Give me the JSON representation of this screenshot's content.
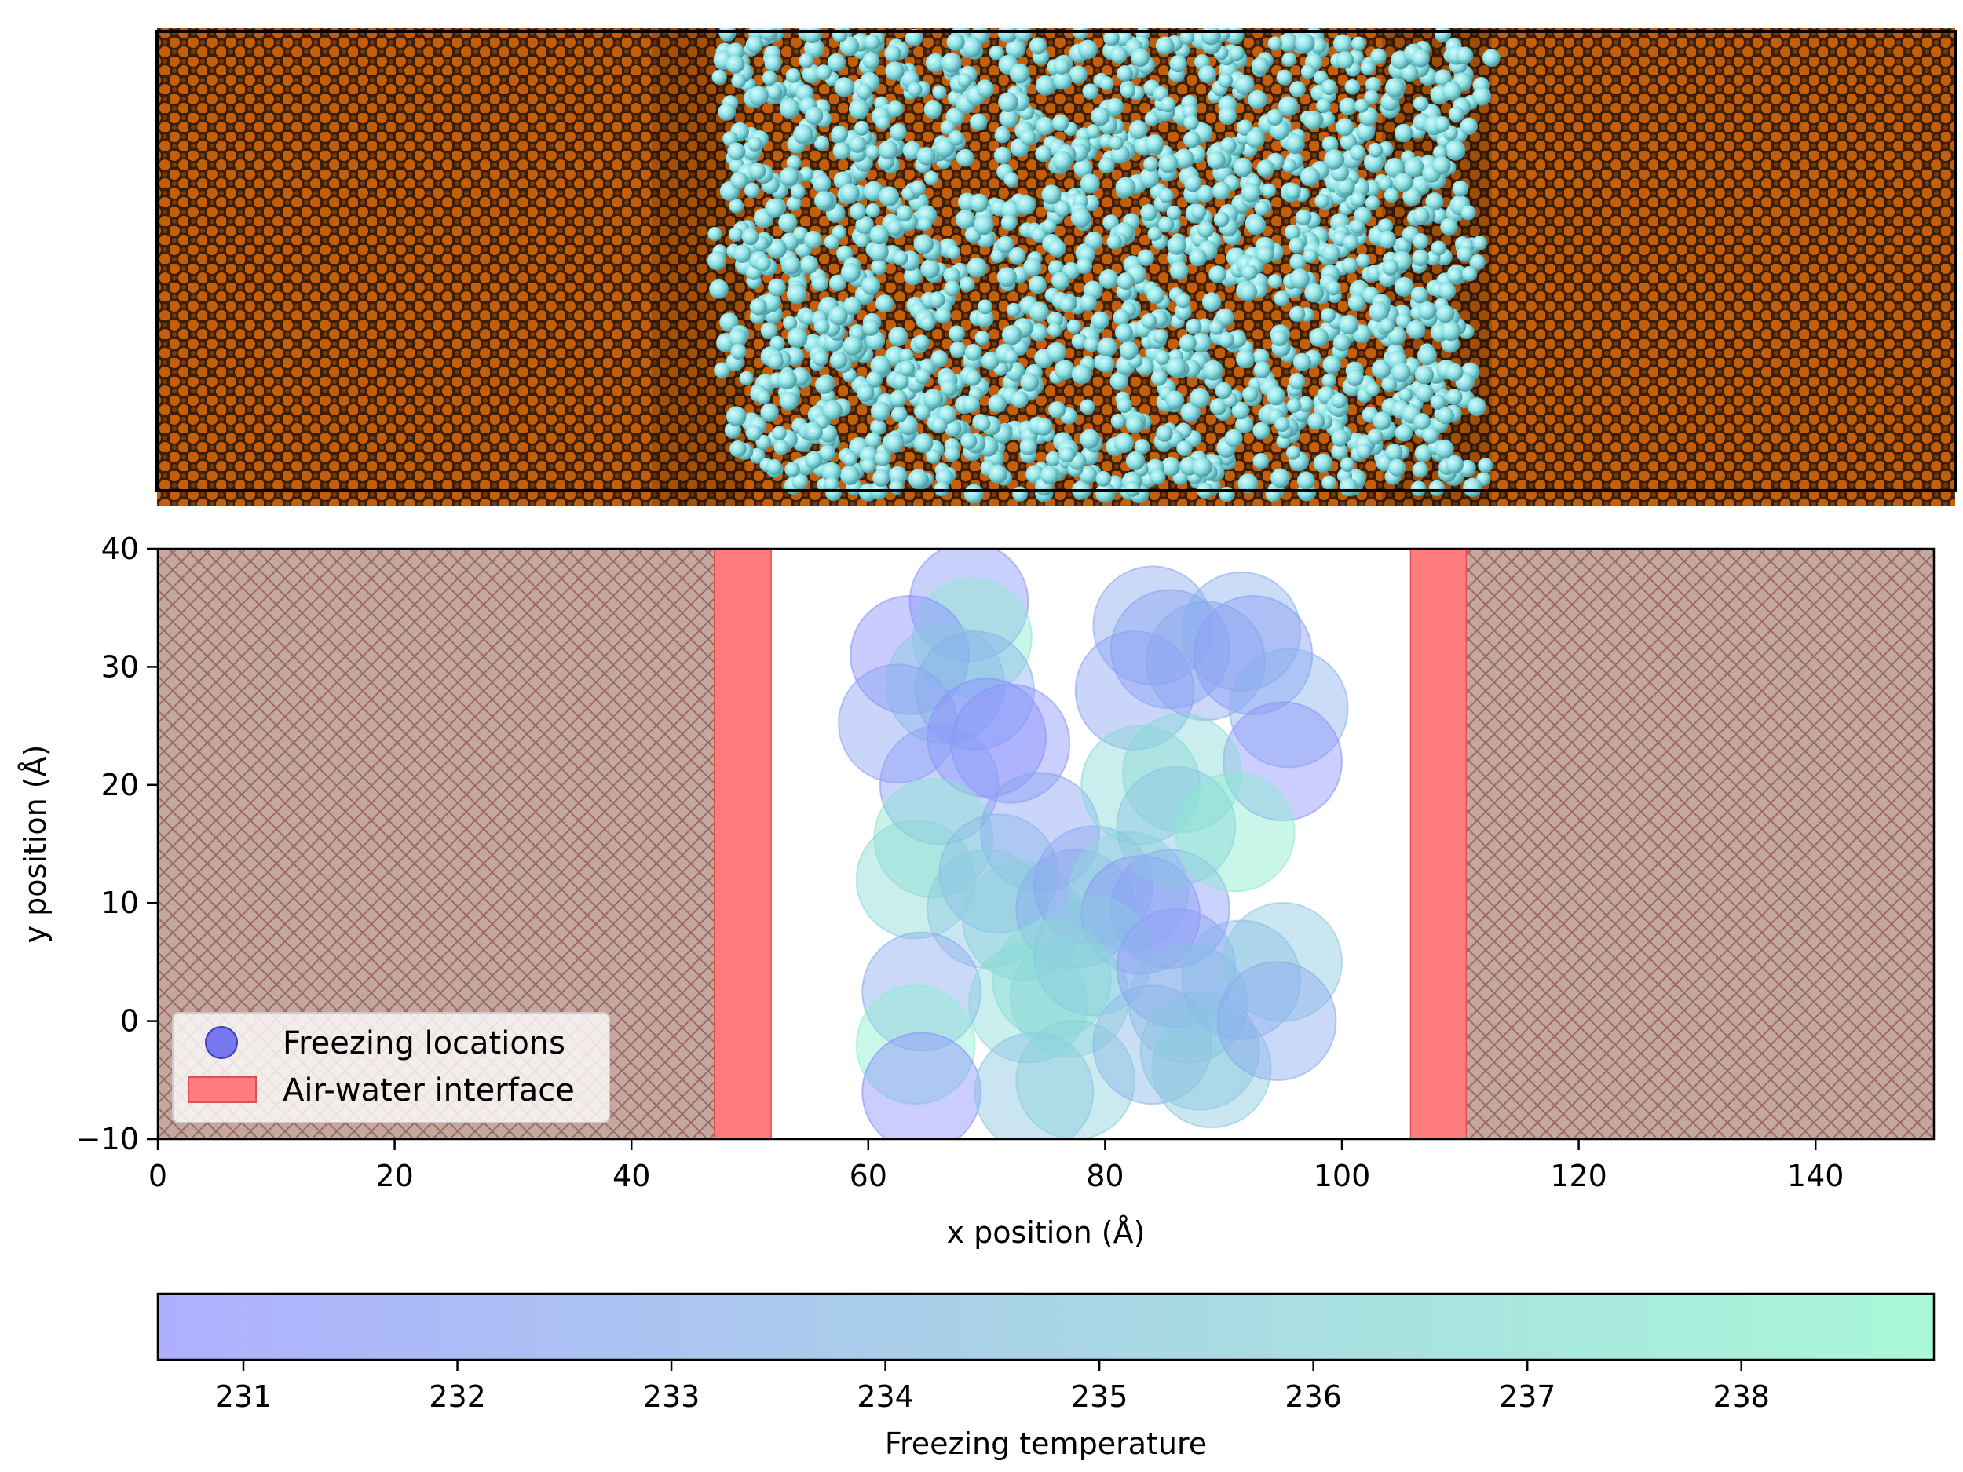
{
  "chart_data": {
    "type": "scatter",
    "title": "",
    "xlabel": "x position (Å)",
    "ylabel": "y position (Å)",
    "xlim": [
      0,
      150
    ],
    "ylim": [
      -10,
      40
    ],
    "xticks": [
      0,
      20,
      40,
      60,
      80,
      100,
      120,
      140
    ],
    "yticks": [
      -10,
      0,
      10,
      20,
      30,
      40
    ],
    "xtick_labels": [
      "0",
      "20",
      "40",
      "60",
      "80",
      "100",
      "120",
      "140"
    ],
    "ytick_labels": [
      "−10",
      "0",
      "10",
      "20",
      "30",
      "40"
    ],
    "grid": false,
    "legend_position": "lower-left",
    "legend": [
      {
        "label": "Freezing locations",
        "kind": "marker"
      },
      {
        "label": "Air-water interface",
        "kind": "patch"
      }
    ],
    "substrate_regions": [
      [
        0,
        47
      ],
      [
        110.5,
        150
      ]
    ],
    "interface_bands": [
      [
        47,
        51.8
      ],
      [
        105.8,
        110.5
      ]
    ],
    "colors": {
      "substrate": "#c4a89f",
      "substrate_hatch": "#9a6a62",
      "interface": "#ff7c7c",
      "cold": "#8a8cff",
      "warm": "#8af5c8",
      "water_molecule": "#8fe3e6",
      "slab_atom": "#c05a06"
    },
    "marker_radius_data_units": 5,
    "series": [
      {
        "name": "Freezing locations",
        "color_by": "freezing_temperature",
        "points": [
          {
            "x": 68.5,
            "y": 35.5,
            "t": 231.5
          },
          {
            "x": 68.8,
            "y": 32.5,
            "t": 238.0
          },
          {
            "x": 63.5,
            "y": 31.0,
            "t": 230.8
          },
          {
            "x": 66.5,
            "y": 28.5,
            "t": 235.5
          },
          {
            "x": 69.0,
            "y": 28.0,
            "t": 233.5
          },
          {
            "x": 62.5,
            "y": 25.2,
            "t": 232.5
          },
          {
            "x": 70.0,
            "y": 24.0,
            "t": 231.0
          },
          {
            "x": 72.0,
            "y": 23.5,
            "t": 231.3
          },
          {
            "x": 66.0,
            "y": 20.0,
            "t": 232.0
          },
          {
            "x": 65.5,
            "y": 15.5,
            "t": 237.5
          },
          {
            "x": 74.5,
            "y": 16.0,
            "t": 232.5
          },
          {
            "x": 64.0,
            "y": 12.0,
            "t": 236.5
          },
          {
            "x": 71.0,
            "y": 12.5,
            "t": 234.0
          },
          {
            "x": 70.0,
            "y": 9.5,
            "t": 235.5
          },
          {
            "x": 73.0,
            "y": 8.5,
            "t": 236.0
          },
          {
            "x": 77.5,
            "y": 9.5,
            "t": 233.0
          },
          {
            "x": 79.0,
            "y": 11.5,
            "t": 232.8
          },
          {
            "x": 82.0,
            "y": 11.0,
            "t": 237.0
          },
          {
            "x": 83.0,
            "y": 9.0,
            "t": 231.5
          },
          {
            "x": 85.5,
            "y": 9.5,
            "t": 232.0
          },
          {
            "x": 84.0,
            "y": 33.5,
            "t": 233.0
          },
          {
            "x": 85.5,
            "y": 31.5,
            "t": 232.5
          },
          {
            "x": 91.5,
            "y": 33.0,
            "t": 233.5
          },
          {
            "x": 88.5,
            "y": 30.5,
            "t": 232.8
          },
          {
            "x": 92.5,
            "y": 31.0,
            "t": 232.0
          },
          {
            "x": 82.5,
            "y": 28.0,
            "t": 232.3
          },
          {
            "x": 95.5,
            "y": 26.5,
            "t": 233.5
          },
          {
            "x": 95.0,
            "y": 22.0,
            "t": 231.2
          },
          {
            "x": 83.0,
            "y": 20.0,
            "t": 236.5
          },
          {
            "x": 86.5,
            "y": 21.0,
            "t": 236.8
          },
          {
            "x": 86.0,
            "y": 16.5,
            "t": 235.0
          },
          {
            "x": 91.0,
            "y": 16.0,
            "t": 238.0
          },
          {
            "x": 64.5,
            "y": 2.5,
            "t": 233.0
          },
          {
            "x": 64.0,
            "y": -2.0,
            "t": 238.5
          },
          {
            "x": 64.5,
            "y": -6.0,
            "t": 231.0
          },
          {
            "x": 73.5,
            "y": 1.5,
            "t": 236.5
          },
          {
            "x": 75.5,
            "y": 3.5,
            "t": 237.0
          },
          {
            "x": 74.0,
            "y": -6.0,
            "t": 235.0
          },
          {
            "x": 77.0,
            "y": 2.0,
            "t": 236.8
          },
          {
            "x": 79.0,
            "y": 5.5,
            "t": 235.5
          },
          {
            "x": 77.5,
            "y": -5.0,
            "t": 236.0
          },
          {
            "x": 84.0,
            "y": -2.0,
            "t": 234.0
          },
          {
            "x": 86.0,
            "y": 4.5,
            "t": 232.0
          },
          {
            "x": 87.0,
            "y": 1.5,
            "t": 234.5
          },
          {
            "x": 88.0,
            "y": -2.5,
            "t": 235.0
          },
          {
            "x": 89.0,
            "y": -4.0,
            "t": 235.5
          },
          {
            "x": 91.5,
            "y": 3.5,
            "t": 234.0
          },
          {
            "x": 95.0,
            "y": 5.0,
            "t": 235.5
          },
          {
            "x": 94.5,
            "y": 0.0,
            "t": 233.0
          }
        ]
      }
    ],
    "colorbar": {
      "label": "Freezing temperature",
      "range": [
        230.6,
        238.9
      ],
      "ticks": [
        231,
        232,
        233,
        234,
        235,
        236,
        237,
        238
      ],
      "tick_labels": [
        "231",
        "232",
        "233",
        "234",
        "235",
        "236",
        "237",
        "238"
      ]
    }
  },
  "snapshot": {
    "slab_x_range": [
      0,
      150
    ],
    "water_x_range": [
      46,
      109
    ]
  }
}
